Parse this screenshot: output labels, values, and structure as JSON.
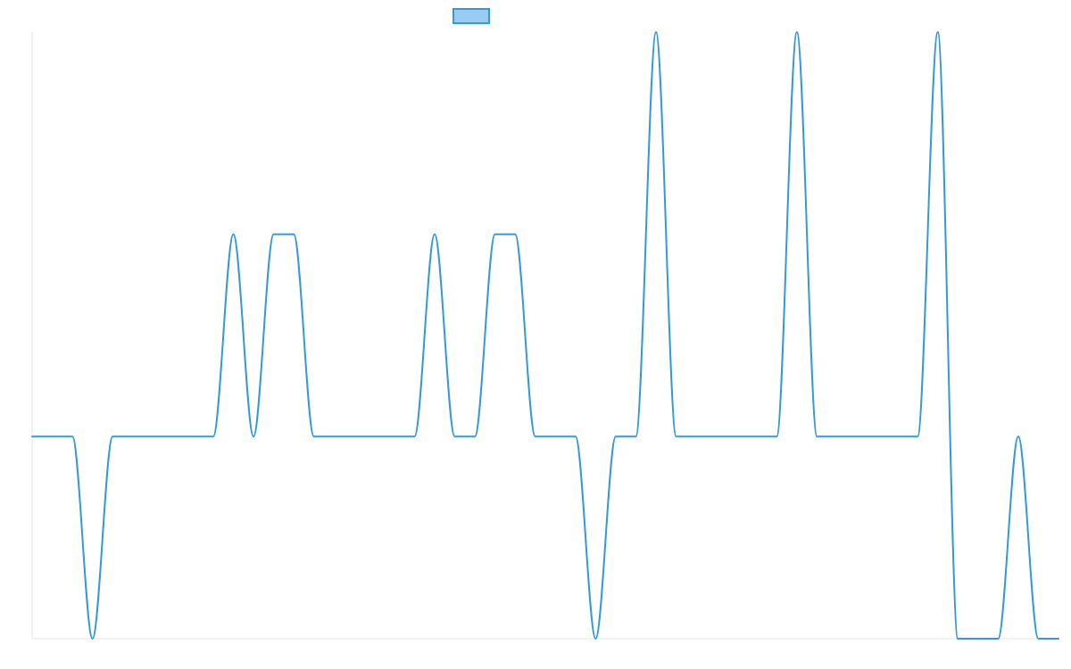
{
  "chart_data": {
    "type": "line",
    "title": "",
    "xlabel": "",
    "ylabel": "",
    "grid": false,
    "legend": "top-center",
    "x": [
      0,
      1,
      2,
      3,
      4,
      5,
      6,
      7,
      8,
      9,
      10,
      11,
      12,
      13,
      14,
      15,
      16,
      17,
      18,
      19,
      20,
      21,
      22,
      23,
      24,
      25,
      26,
      27,
      28,
      29,
      30,
      31,
      32,
      33,
      34,
      35,
      36,
      37,
      38,
      39,
      40,
      41,
      42,
      43,
      44,
      45,
      46,
      47,
      48,
      49,
      50,
      51
    ],
    "xlim": [
      0,
      51
    ],
    "ylim": [
      -1,
      2
    ],
    "colors": {
      "line": "#3399dd",
      "legend_fill": "#99ccf0",
      "axis": "#e5e5e5"
    },
    "series": [
      {
        "values": [
          0,
          0,
          0,
          -1,
          0,
          0,
          0,
          0,
          0,
          0,
          1,
          0,
          1,
          1,
          0,
          0,
          0,
          0,
          0,
          0,
          1,
          0,
          0,
          1,
          1,
          0,
          0,
          0,
          -1,
          0,
          0,
          2,
          0,
          0,
          0,
          0,
          0,
          0,
          2,
          0,
          0,
          0,
          0,
          0,
          0,
          2,
          -1,
          -1,
          -1,
          0,
          -1,
          -1
        ]
      }
    ]
  }
}
